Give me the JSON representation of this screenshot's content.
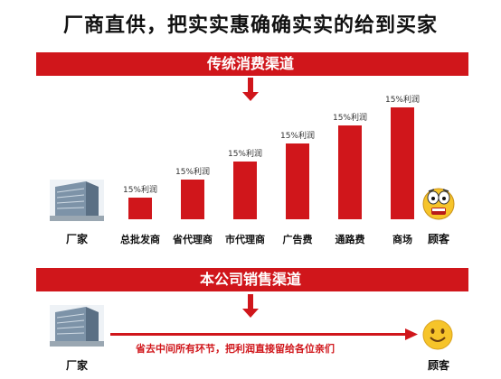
{
  "headline": "厂商直供，把实实惠确确实实的给到买家",
  "traditional": {
    "banner": "传统消费渠道",
    "factory_label": "厂家",
    "consumer_label": "顾客",
    "chart_data": {
      "type": "bar",
      "categories": [
        "总批发商",
        "省代理商",
        "市代理商",
        "广告费",
        "通路费",
        "商场"
      ],
      "values": [
        1,
        2,
        3,
        4,
        5,
        6
      ],
      "data_labels": [
        "15%利润",
        "15%利润",
        "15%利润",
        "15%利润",
        "15%利润",
        "15%利润"
      ],
      "title": "",
      "xlabel": "",
      "ylabel": ""
    }
  },
  "company": {
    "banner": "本公司销售渠道",
    "factory_label": "厂家",
    "consumer_label": "顾客",
    "arrow_note": "省去中间所有环节，把利润直接留给各位亲们"
  },
  "colors": {
    "accent": "#d0161b",
    "face": "#f6c42a"
  },
  "icons": [
    "building-icon",
    "shocked-face-icon",
    "smiley-face-icon",
    "down-arrow-icon",
    "right-arrow-icon"
  ]
}
